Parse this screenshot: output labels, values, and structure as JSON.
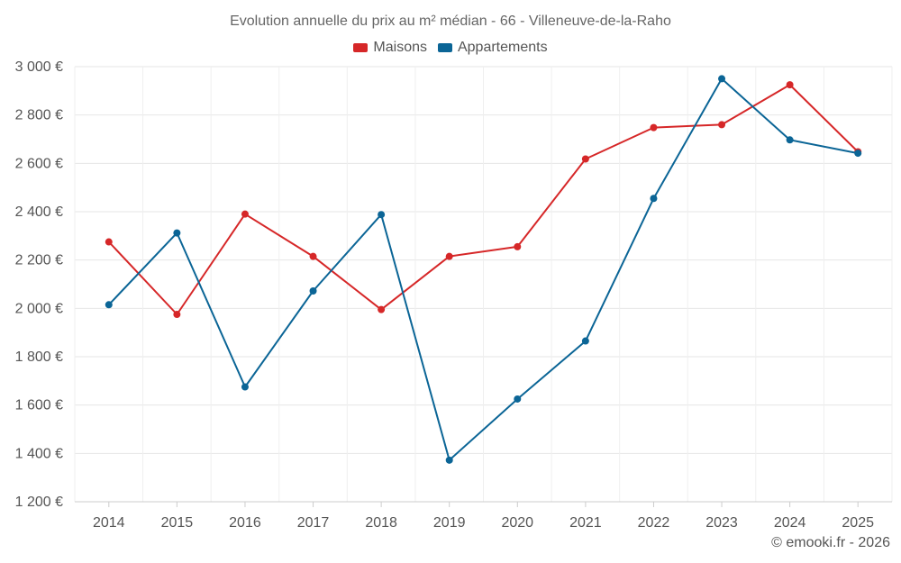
{
  "chart_data": {
    "type": "line",
    "title": "Evolution annuelle du prix au m² médian - 66 - Villeneuve-de-la-Raho",
    "categories": [
      "2014",
      "2015",
      "2016",
      "2017",
      "2018",
      "2019",
      "2020",
      "2021",
      "2022",
      "2023",
      "2024",
      "2025"
    ],
    "series": [
      {
        "name": "Maisons",
        "color": "#d62728",
        "values": [
          2275,
          1975,
          2390,
          2215,
          1995,
          2215,
          2255,
          2618,
          2748,
          2760,
          2925,
          2648
        ]
      },
      {
        "name": "Appartements",
        "color": "#0b6596",
        "values": [
          2015,
          2312,
          1675,
          2072,
          2388,
          1372,
          1625,
          1865,
          2455,
          2950,
          2697,
          2642
        ]
      }
    ],
    "ylim": [
      1200,
      3000
    ],
    "yticks": [
      1200,
      1400,
      1600,
      1800,
      2000,
      2200,
      2400,
      2600,
      2800,
      3000
    ],
    "ytick_labels": [
      "1 200 €",
      "1 400 €",
      "1 600 €",
      "1 800 €",
      "2 000 €",
      "2 200 €",
      "2 400 €",
      "2 600 €",
      "2 800 €",
      "3 000 €"
    ],
    "xlabel": "",
    "ylabel": "",
    "grid": true,
    "legend": "top-center"
  },
  "footer": {
    "credit": "© emooki.fr - 2026"
  }
}
